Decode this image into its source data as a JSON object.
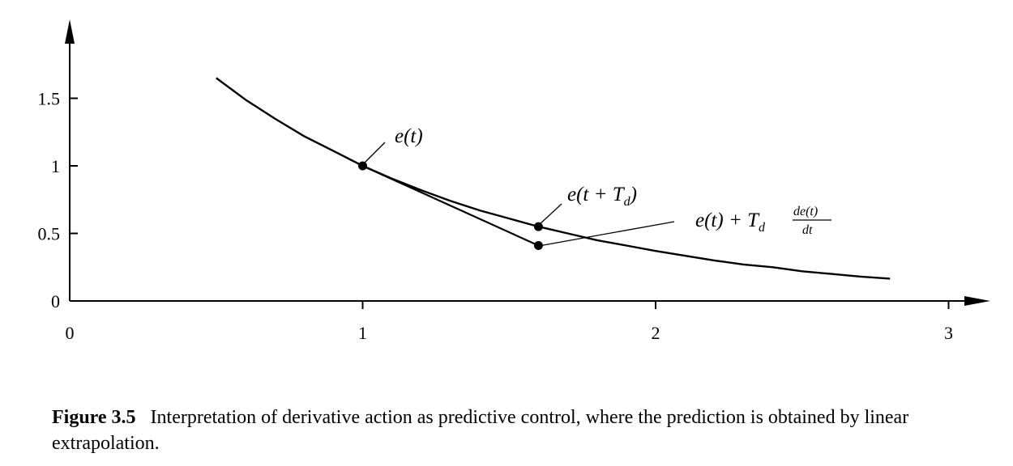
{
  "chart_data": {
    "type": "line",
    "title": "",
    "xlabel": "",
    "ylabel": "",
    "xlim": [
      0,
      3.1
    ],
    "ylim": [
      0,
      2
    ],
    "x_ticks": [
      0,
      1,
      2,
      3
    ],
    "x_tick_labels": [
      "0",
      "1",
      "2",
      "3"
    ],
    "y_ticks": [
      0,
      0.5,
      1,
      1.5
    ],
    "y_tick_labels": [
      "0",
      "0.5",
      "1",
      "1.5"
    ],
    "grid": false,
    "series": [
      {
        "kind": "curve",
        "x": [
          0.5,
          0.6,
          0.7,
          0.8,
          0.9,
          1.0,
          1.1,
          1.2,
          1.3,
          1.4,
          1.5,
          1.6,
          1.7,
          1.8,
          1.9,
          2.0,
          2.1,
          2.2,
          2.3,
          2.4,
          2.5,
          2.6,
          2.7,
          2.8
        ],
        "y": [
          1.65,
          1.49,
          1.35,
          1.22,
          1.11,
          1.0,
          0.905,
          0.82,
          0.74,
          0.67,
          0.61,
          0.55,
          0.5,
          0.45,
          0.41,
          0.37,
          0.335,
          0.3,
          0.27,
          0.25,
          0.22,
          0.2,
          0.18,
          0.165
        ]
      },
      {
        "kind": "tangent",
        "x": [
          1.0,
          1.6
        ],
        "y": [
          1.0,
          0.41
        ]
      }
    ],
    "points": [
      {
        "x": 1.0,
        "y": 1.0
      },
      {
        "x": 1.6,
        "y": 0.55
      },
      {
        "x": 1.6,
        "y": 0.41
      }
    ],
    "annotations": {
      "e_t": "e(t)",
      "e_t_td_main": "e(t + T",
      "e_t_td_sub": "d",
      "e_t_td_close": ")",
      "extrap_main": "e(t) + T",
      "extrap_sub": "d",
      "extrap_num": "de(t)",
      "extrap_den": "dt"
    }
  },
  "caption": {
    "figure_number": "Figure 3.5",
    "text": "Interpretation of derivative action as predictive control, where the prediction is obtained by linear extrapolation."
  }
}
